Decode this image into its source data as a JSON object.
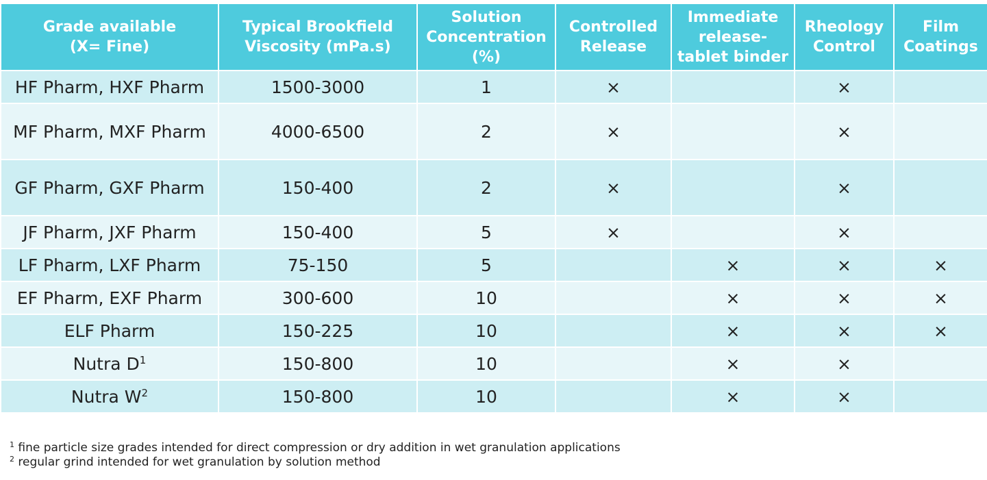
{
  "table": {
    "headers": [
      {
        "line1": "Grade available",
        "line2": "(X= Fine)"
      },
      {
        "line1": "Typical Brookfield",
        "line2": "Viscosity (mPa.s)"
      },
      {
        "line1": "Solution",
        "line2": "Concentration",
        "line3": "(%)"
      },
      {
        "line1": "Controlled",
        "line2": "Release"
      },
      {
        "line1": "Immediate",
        "line2": "release-",
        "line3": "tablet binder"
      },
      {
        "line1": "Rheology",
        "line2": "Control"
      },
      {
        "line1": "Film",
        "line2": "Coatings"
      }
    ],
    "rows": [
      {
        "grade": "HF Pharm, HXF Pharm",
        "viscosity": "1500-3000",
        "concentration": "1",
        "controlled": "×",
        "immediate": "",
        "rheology": "×",
        "film": ""
      },
      {
        "grade": "MF Pharm, MXF Pharm",
        "viscosity": "4000-6500",
        "concentration": "2",
        "controlled": "×",
        "immediate": "",
        "rheology": "×",
        "film": ""
      },
      {
        "grade": "GF Pharm, GXF Pharm",
        "viscosity": "150-400",
        "concentration": "2",
        "controlled": "×",
        "immediate": "",
        "rheology": "×",
        "film": ""
      },
      {
        "grade": "JF Pharm, JXF Pharm",
        "viscosity": "150-400",
        "concentration": "5",
        "controlled": "×",
        "immediate": "",
        "rheology": "×",
        "film": ""
      },
      {
        "grade": "LF Pharm, LXF Pharm",
        "viscosity": "75-150",
        "concentration": "5",
        "controlled": "",
        "immediate": "×",
        "rheology": "×",
        "film": "×"
      },
      {
        "grade": "EF Pharm, EXF Pharm",
        "viscosity": "300-600",
        "concentration": "10",
        "controlled": "",
        "immediate": "×",
        "rheology": "×",
        "film": "×"
      },
      {
        "grade": "ELF Pharm",
        "viscosity": "150-225",
        "concentration": "10",
        "controlled": "",
        "immediate": "×",
        "rheology": "×",
        "film": "×"
      },
      {
        "grade": "Nutra D",
        "sup": "1",
        "viscosity": "150-800",
        "concentration": "10",
        "controlled": "",
        "immediate": "×",
        "rheology": "×",
        "film": ""
      },
      {
        "grade": "Nutra W",
        "sup": "2",
        "viscosity": "150-800",
        "concentration": "10",
        "controlled": "",
        "immediate": "×",
        "rheology": "×",
        "film": ""
      }
    ]
  },
  "footnotes": [
    {
      "marker": "1",
      "text": "fine particle size grades intended for direct compression or dry addition in wet granulation applications"
    },
    {
      "marker": "2",
      "text": "regular grind intended for wet granulation by solution method"
    }
  ],
  "colors": {
    "header_bg": "#4ecbdd",
    "row_band_a": "#cdeef3",
    "row_band_b": "#e7f6f9",
    "text": "#222222"
  }
}
